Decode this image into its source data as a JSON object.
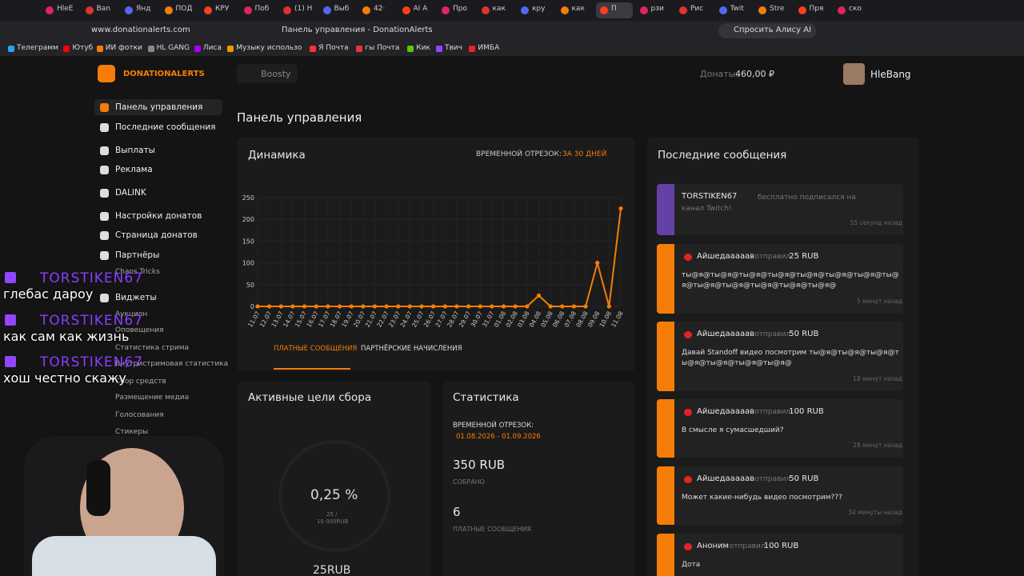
{
  "browser": {
    "tabs": [
      "HleE",
      "Ban",
      "Янд",
      "ПОД",
      "КРУ",
      "Поб",
      "(1) Н",
      "Выб",
      "42·",
      "AI A",
      "Про",
      "как",
      "кру",
      "как",
      "П",
      "рзи",
      "Рис",
      "Twit",
      "Stre",
      "Пря",
      "ско"
    ],
    "url": "www.donationalerts.com",
    "page_title": "Панель управления - DonationAlerts",
    "alice": "Спросить Алису AI",
    "bookmarks": [
      "Телеграмм",
      "Ютуб",
      "ИИ фотки",
      "HL GANG",
      "Лиса",
      "Музыку использо",
      "Я Почта",
      "гы Почта",
      "Кик",
      "Твич",
      "ИМБА"
    ]
  },
  "header": {
    "logo": "DONATIONALERTS",
    "boosty": "Boosty",
    "balance_label": "Донаты:",
    "balance": "460,00 ₽",
    "user": "HleBang"
  },
  "sidebar": {
    "items": [
      "Панель управления",
      "Последние сообщения",
      "Выплаты",
      "Реклама",
      "DALINK",
      "Настройки донатов",
      "Страница донатов",
      "Партнёры",
      "Chaos Tricks",
      "Виджеты",
      "Аукцион",
      "Оповещения",
      "Статистика стрима",
      "Внутристримовая статистика",
      "Сбор средств",
      "Размещение медиа",
      "Голосования",
      "Стикеры"
    ]
  },
  "main": {
    "title": "Панель управления"
  },
  "dynamics": {
    "title": "Динамика",
    "period_label": "ВРЕМЕННОЙ ОТРЕЗОК:",
    "period": "ЗА 30 ДНЕЙ",
    "chart": {
      "type": "line",
      "color": "#f57d07",
      "grid": true,
      "categories": [
        "11.07",
        "12.07",
        "13.07",
        "14.07",
        "15.07",
        "16.07",
        "17.07",
        "18.07",
        "19.07",
        "20.07",
        "21.07",
        "22.07",
        "23.07",
        "24.07",
        "25.07",
        "26.07",
        "27.07",
        "28.07",
        "29.07",
        "30.07",
        "31.07",
        "01.08",
        "02.08",
        "03.08",
        "04.08",
        "05.08",
        "06.08",
        "07.08",
        "08.08",
        "09.08",
        "10.08",
        "11.08"
      ],
      "values": [
        0,
        0,
        0,
        0,
        0,
        0,
        0,
        0,
        0,
        0,
        0,
        0,
        0,
        0,
        0,
        0,
        0,
        0,
        0,
        0,
        0,
        0,
        0,
        0,
        25,
        0,
        0,
        0,
        0,
        100,
        0,
        225
      ],
      "ylim": [
        0,
        250
      ],
      "yticks": [
        0,
        50,
        100,
        150,
        200,
        250
      ]
    },
    "tabs": [
      "ПЛАТНЫЕ СООБЩЕНИЯ",
      "ПАРТНЁРСКИЕ НАЧИСЛЕНИЯ"
    ]
  },
  "goals": {
    "title": "Активные цели сбора",
    "percent": "0,25 %",
    "progress": "25 /",
    "target": "10 000RUB",
    "amount": "25RUB"
  },
  "stats": {
    "title": "Статистика",
    "period_label": "ВРЕМЕННОЙ ОТРЕЗОК:",
    "period": "01.08.2026 - 01.09.2026",
    "collected": "350 RUB",
    "collected_label": "СОБРАНО",
    "count": "6",
    "count_label": "ПЛАТНЫЕ СООБЩЕНИЯ"
  },
  "messages": {
    "title": "Последние сообщения",
    "items": [
      {
        "name": "TORSTIKEN67",
        "action": "бесплатно подписался на канал Twitch!",
        "time": "55 секунд назад"
      },
      {
        "name": "Айшедааааав",
        "action": "отправил",
        "amount": "25 RUB",
        "text": "ты@я@ты@я@ты@я@ты@я@ты@я@ты@я@ты@я@ты@я@ты@я@ты@я@ты@я@ты@я@ты@я@",
        "time": "5 минут назад"
      },
      {
        "name": "Айшедааааав",
        "action": "отправил",
        "amount": "50 RUB",
        "text": "Давай Standoff видео посмотрим ты@я@ты@я@ты@я@ты@я@ты@я@ты@я@ты@я@",
        "time": "18 минут назад"
      },
      {
        "name": "Айшедааааав",
        "action": "отправил",
        "amount": "100 RUB",
        "text": "В смысле я сумасшедший?",
        "time": "28 минут назад"
      },
      {
        "name": "Айшедааааав",
        "action": "отправил",
        "amount": "50 RUB",
        "text": "Может какие-нибудь видео посмотрим???",
        "time": "34 минуты назад"
      },
      {
        "name": "Аноним",
        "action": "отправил",
        "amount": "100 RUB",
        "text": "Дота"
      }
    ]
  },
  "overlay": {
    "chat": [
      {
        "user": "TORSTIKEN67",
        "text": "глебас дароу"
      },
      {
        "user": "TORSTIKEN67",
        "text": "как сам как жизнь"
      },
      {
        "user": "TORSTIKEN67",
        "text": "хош честно скажу"
      }
    ]
  }
}
